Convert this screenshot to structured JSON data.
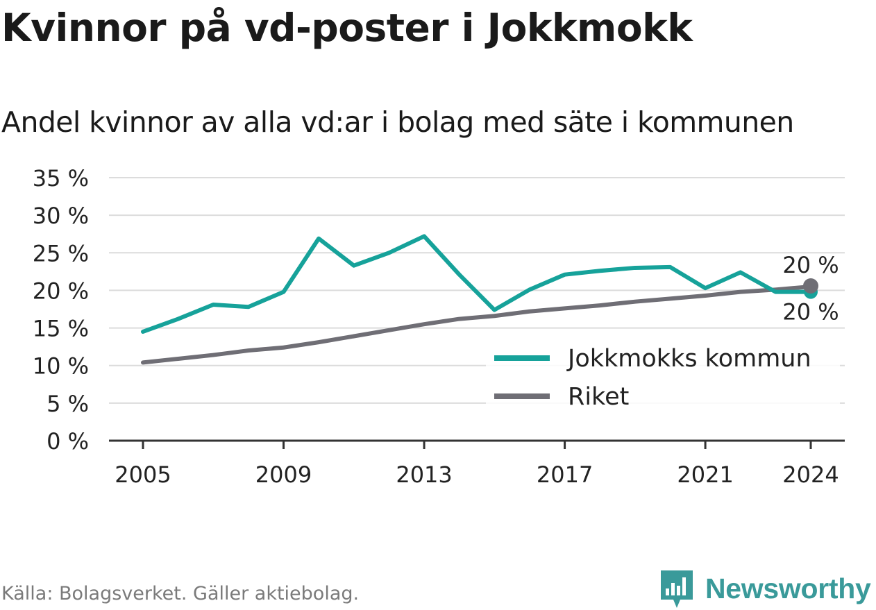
{
  "title": "Kvinnor på vd-poster i Jokkmokk",
  "subtitle": "Andel kvinnor av alla vd:ar i bolag med säte i kommunen",
  "source": "Källa: Bolagsverket. Gäller aktiebolag.",
  "brand": "Newsworthy",
  "colors": {
    "kommun": "#16a29a",
    "riket": "#6f6e75",
    "grid": "#dcdcdc",
    "axis": "#333333"
  },
  "chart_data": {
    "type": "line",
    "ylim": [
      0,
      35
    ],
    "yticks": [
      0,
      5,
      10,
      15,
      20,
      25,
      30,
      35
    ],
    "ytick_labels": [
      "0 %",
      "5 %",
      "10 %",
      "15 %",
      "20 %",
      "25 %",
      "30 %",
      "35 %"
    ],
    "xticks": [
      2005,
      2009,
      2013,
      2017,
      2021,
      2024
    ],
    "xtick_labels": [
      "2005",
      "2009",
      "2013",
      "2017",
      "2021",
      "2024"
    ],
    "x": [
      2005,
      2006,
      2007,
      2008,
      2009,
      2010,
      2011,
      2012,
      2013,
      2014,
      2015,
      2016,
      2017,
      2018,
      2019,
      2020,
      2021,
      2022,
      2023,
      2024
    ],
    "series": [
      {
        "name": "Jokkmokks kommun",
        "color": "#16a29a",
        "values": [
          14.5,
          16.2,
          18.1,
          17.8,
          19.8,
          26.9,
          23.3,
          25.0,
          27.2,
          22.1,
          17.4,
          20.1,
          22.1,
          22.6,
          23.0,
          23.1,
          20.3,
          22.4,
          19.8,
          19.8
        ],
        "end_label": "20 %"
      },
      {
        "name": "Riket",
        "color": "#6f6e75",
        "values": [
          10.4,
          10.9,
          11.4,
          12.0,
          12.4,
          13.1,
          13.9,
          14.7,
          15.5,
          16.2,
          16.6,
          17.2,
          17.6,
          18.0,
          18.5,
          18.9,
          19.3,
          19.8,
          20.1,
          20.5
        ],
        "end_label": "20 %"
      }
    ],
    "legend": "inside-right"
  }
}
